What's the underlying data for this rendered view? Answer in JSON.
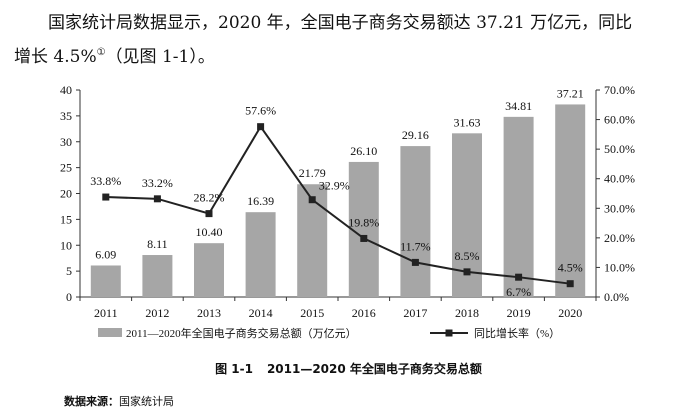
{
  "paragraph": {
    "line1": "国家统计局数据显示，2020 年，全国电子商务交易额达 37.21 万亿元，同比",
    "line2_main": "增长 4.5%",
    "line2_sup": "①",
    "line2_tail": "（见图 1-1）。"
  },
  "chart_data": {
    "type": "bar",
    "categories": [
      "2011",
      "2012",
      "2013",
      "2014",
      "2015",
      "2016",
      "2017",
      "2018",
      "2019",
      "2020"
    ],
    "series": [
      {
        "name": "2011—2020年全国电子商务交易总额（万亿元）",
        "type": "bar",
        "axis": "left",
        "values": [
          6.09,
          8.11,
          10.4,
          16.39,
          21.79,
          26.1,
          29.16,
          31.63,
          34.81,
          37.21
        ],
        "labels": [
          "6.09",
          "8.11",
          "10.40",
          "16.39",
          "21.79",
          "26.10",
          "29.16",
          "31.63",
          "34.81",
          "37.21"
        ],
        "color": "#a6a6a6"
      },
      {
        "name": "同比增长率（%）",
        "type": "line",
        "axis": "right",
        "values": [
          33.8,
          33.2,
          28.2,
          57.6,
          32.9,
          19.8,
          11.7,
          8.5,
          6.7,
          4.5
        ],
        "labels": [
          "33.8%",
          "33.2%",
          "28.2%",
          "57.6%",
          "32.9%",
          "19.8%",
          "11.7%",
          "8.5%",
          "6.7%",
          "4.5%"
        ],
        "color": "#222222"
      }
    ],
    "left_axis": {
      "min": 0,
      "max": 40,
      "step": 5,
      "ticks": [
        "0",
        "5",
        "10",
        "15",
        "20",
        "25",
        "30",
        "35",
        "40"
      ]
    },
    "right_axis": {
      "min": 0,
      "max": 70,
      "step": 10,
      "ticks": [
        "0.0%",
        "10.0%",
        "20.0%",
        "30.0%",
        "40.0%",
        "50.0%",
        "60.0%",
        "70.0%"
      ]
    },
    "legend": {
      "bar_label": "2011—2020年全国电子商务交易总额（万亿元）",
      "line_label": "同比增长率（%）",
      "position": "bottom"
    },
    "title": "图 1-1　2011—2020 年全国电子商务交易总额"
  },
  "caption": {
    "number": "图 1-1",
    "text": "2011—2020 年全国电子商务交易总额"
  },
  "source": {
    "label": "数据来源：",
    "value": "国家统计局"
  }
}
